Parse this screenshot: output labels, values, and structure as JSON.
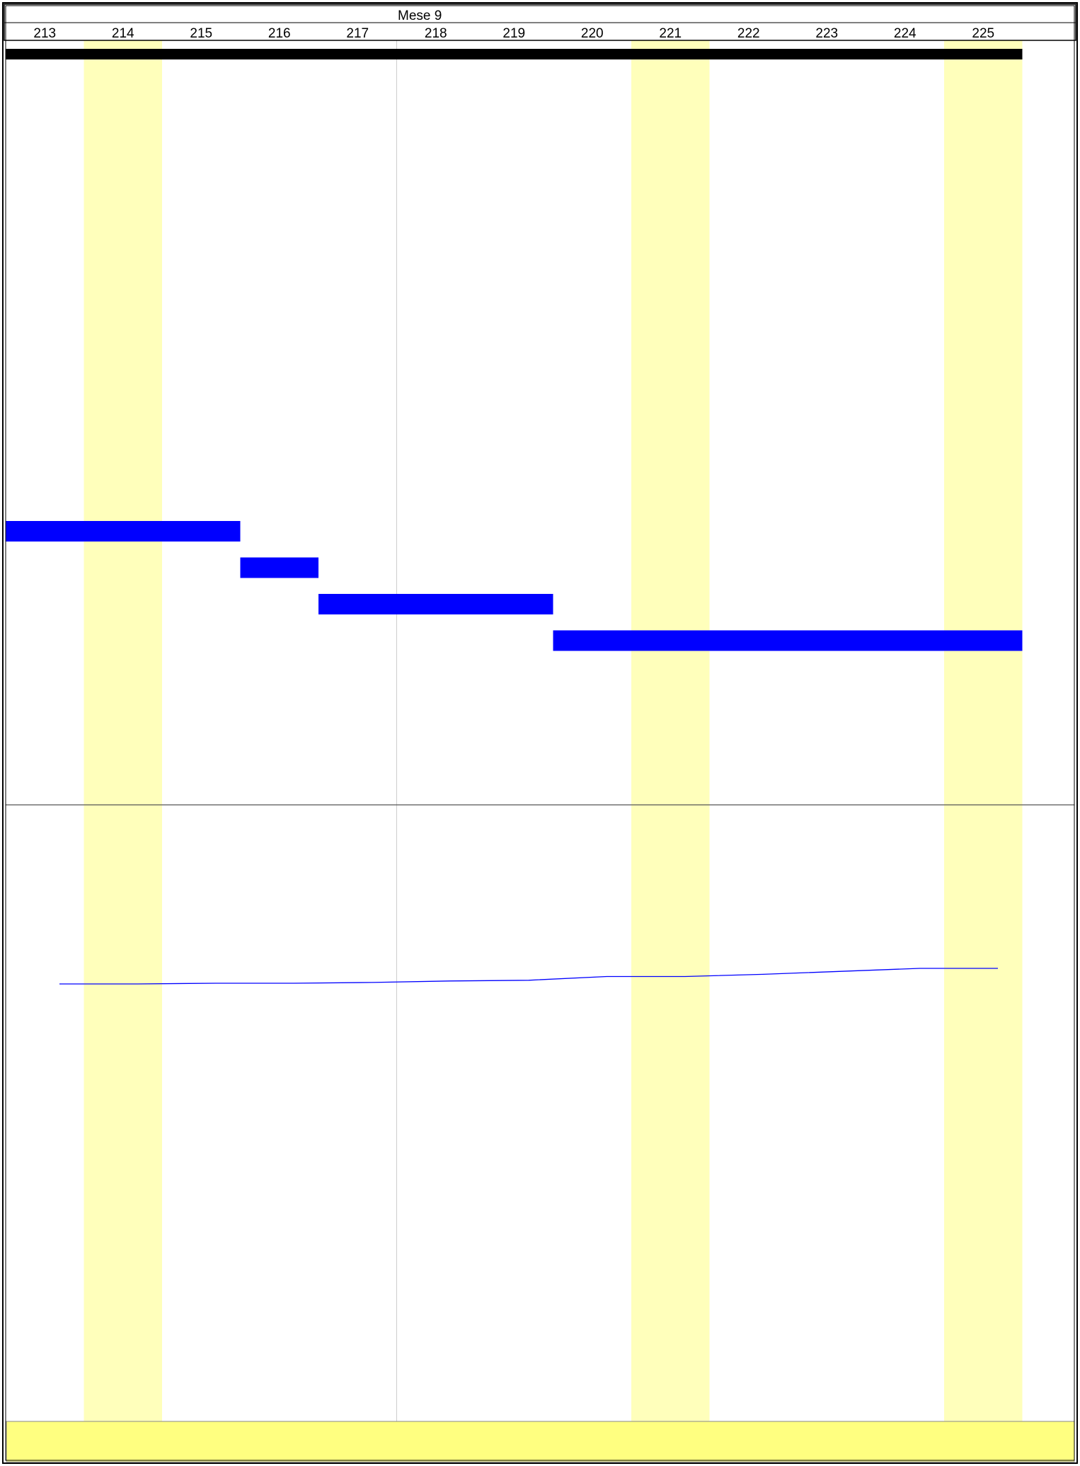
{
  "header": {
    "month_label": "Mese 9"
  },
  "colors": {
    "weekend_band": "#ffffbb",
    "summary_bar": "#000000",
    "task_bar": "#0000ff",
    "trend_line": "#0000ff",
    "footer_band": "#ffff80",
    "grid": "#cccccc",
    "border": "#000000"
  },
  "chart_data": {
    "type": "gantt",
    "x": [
      "213",
      "214",
      "215",
      "216",
      "217",
      "218",
      "219",
      "220",
      "221",
      "222",
      "223",
      "224",
      "225"
    ],
    "highlighted_columns": [
      "214",
      "221",
      "225"
    ],
    "summary_bar": {
      "start": 213,
      "end": 225
    },
    "tasks": [
      {
        "start": 213,
        "end": 215
      },
      {
        "start": 216,
        "end": 216
      },
      {
        "start": 217,
        "end": 219
      },
      {
        "start": 220,
        "end": 225
      }
    ],
    "line": {
      "x": [
        213,
        214,
        215,
        216,
        217,
        218,
        219,
        220,
        221,
        222,
        223,
        224,
        225
      ],
      "y": [
        0,
        0,
        1,
        1,
        2,
        4,
        5,
        10,
        10,
        13,
        17,
        21,
        21
      ]
    }
  }
}
